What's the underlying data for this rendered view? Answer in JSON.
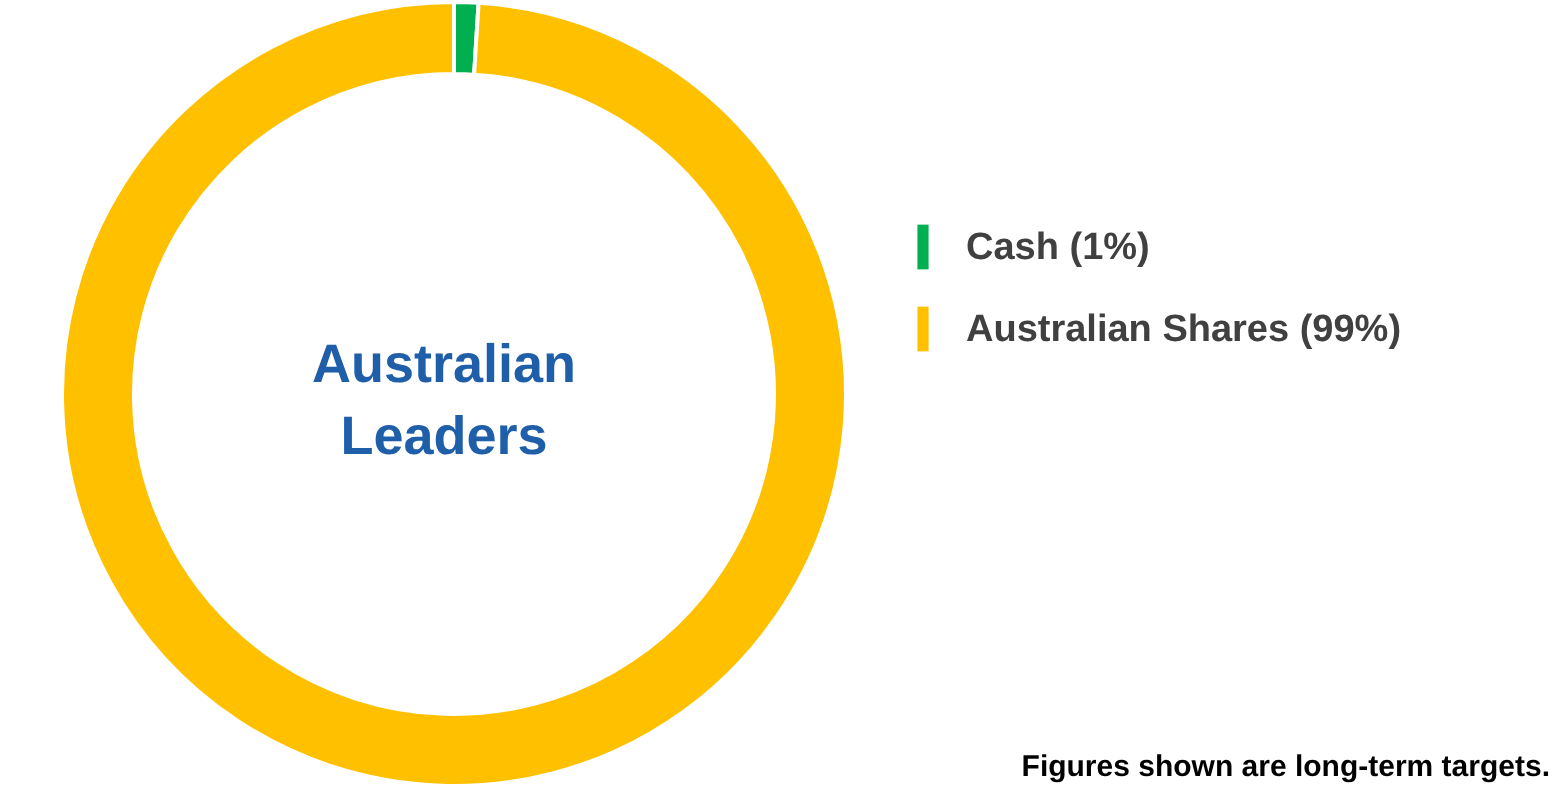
{
  "chart_data": {
    "type": "donut",
    "title": "Australian Leaders",
    "categories": [
      "Cash (1%)",
      "Australian Shares (99%)"
    ],
    "values": [
      1,
      99
    ],
    "colors": [
      "#00b050",
      "#ffc000"
    ],
    "legend": "right",
    "annotations": [
      "Figures shown are long-term targets."
    ]
  }
}
